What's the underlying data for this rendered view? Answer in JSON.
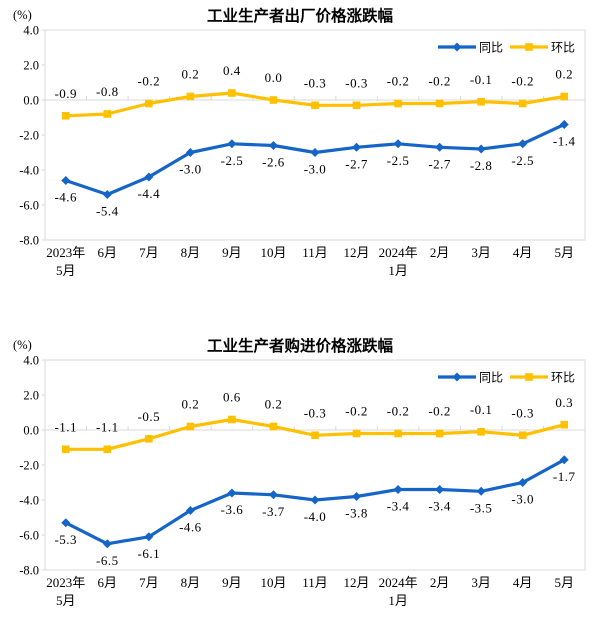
{
  "page": {
    "background": "#ffffff"
  },
  "style": {
    "axis_color": "#d9d9d9",
    "text_color": "#000000",
    "yoy_blue": "#1565c8",
    "mom_yellow": "#ffc000"
  },
  "chart_data": [
    {
      "type": "line",
      "title": "工业生产者出厂价格涨跌幅",
      "unit_label": "(%)",
      "categories": [
        "2023年\n5月",
        "6月",
        "7月",
        "8月",
        "9月",
        "10月",
        "11月",
        "12月",
        "2024年\n1月",
        "2月",
        "3月",
        "4月",
        "5月"
      ],
      "ylim": [
        -8.0,
        4.0
      ],
      "yticks": [
        "4.0",
        "2.0",
        "0.0",
        "-2.0",
        "-4.0",
        "-6.0",
        "-8.0"
      ],
      "grid": false,
      "legend_position": "top-right",
      "series": [
        {
          "name": "同比",
          "color": "#1565c8",
          "marker": "diamond",
          "label_position": "below",
          "values": [
            -4.6,
            -5.4,
            -4.4,
            -3.0,
            -2.5,
            -2.6,
            -3.0,
            -2.7,
            -2.5,
            -2.7,
            -2.8,
            -2.5,
            -1.4
          ]
        },
        {
          "name": "环比",
          "color": "#ffc000",
          "marker": "square",
          "label_position": "above",
          "values": [
            -0.9,
            -0.8,
            -0.2,
            0.2,
            0.4,
            0.0,
            -0.3,
            -0.3,
            -0.2,
            -0.2,
            -0.1,
            -0.2,
            0.2
          ]
        }
      ]
    },
    {
      "type": "line",
      "title": "工业生产者购进价格涨跌幅",
      "unit_label": "(%)",
      "categories": [
        "2023年\n5月",
        "6月",
        "7月",
        "8月",
        "9月",
        "10月",
        "11月",
        "12月",
        "2024年\n1月",
        "2月",
        "3月",
        "4月",
        "5月"
      ],
      "ylim": [
        -8.0,
        4.0
      ],
      "yticks": [
        "4.0",
        "2.0",
        "0.0",
        "-2.0",
        "-4.0",
        "-6.0",
        "-8.0"
      ],
      "grid": false,
      "legend_position": "top-right",
      "series": [
        {
          "name": "同比",
          "color": "#1565c8",
          "marker": "diamond",
          "label_position": "below",
          "values": [
            -5.3,
            -6.5,
            -6.1,
            -4.6,
            -3.6,
            -3.7,
            -4.0,
            -3.8,
            -3.4,
            -3.4,
            -3.5,
            -3.0,
            -1.7
          ]
        },
        {
          "name": "环比",
          "color": "#ffc000",
          "marker": "square",
          "label_position": "above",
          "values": [
            -1.1,
            -1.1,
            -0.5,
            0.2,
            0.6,
            0.2,
            -0.3,
            -0.2,
            -0.2,
            -0.2,
            -0.1,
            -0.3,
            0.3
          ]
        }
      ]
    }
  ]
}
